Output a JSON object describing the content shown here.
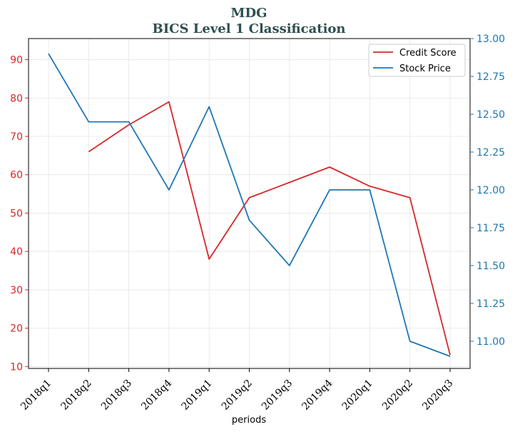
{
  "chart_data": {
    "type": "line",
    "title": "MDG",
    "subtitle": "BICS Level 1 Classification",
    "xlabel": "periods",
    "ylabel_left": "",
    "ylabel_right": "",
    "categories": [
      "2018q1",
      "2018q2",
      "2018q3",
      "2018q4",
      "2019q1",
      "2019q2",
      "2019q3",
      "2019q4",
      "2020q1",
      "2020q2",
      "2020q3"
    ],
    "series": [
      {
        "name": "Credit Score",
        "axis": "left",
        "color": "#d62728",
        "values": [
          null,
          66,
          73,
          79,
          38,
          54,
          58,
          62,
          57,
          54,
          13
        ]
      },
      {
        "name": "Stock Price",
        "axis": "right",
        "color": "#1f77b4",
        "values": [
          12.9,
          12.45,
          12.45,
          12.0,
          12.55,
          11.8,
          11.5,
          12.0,
          12.0,
          11.0,
          10.9
        ]
      }
    ],
    "ylim_left": [
      9.5,
      95.5
    ],
    "yticks_left": [
      10,
      20,
      30,
      40,
      50,
      60,
      70,
      80,
      90
    ],
    "ylim_right": [
      10.82,
      13.0
    ],
    "yticks_right": [
      "11.00",
      "11.25",
      "11.50",
      "11.75",
      "12.00",
      "12.25",
      "12.50",
      "12.75",
      "13.00"
    ],
    "grid": true,
    "legend_position": "top-right"
  }
}
